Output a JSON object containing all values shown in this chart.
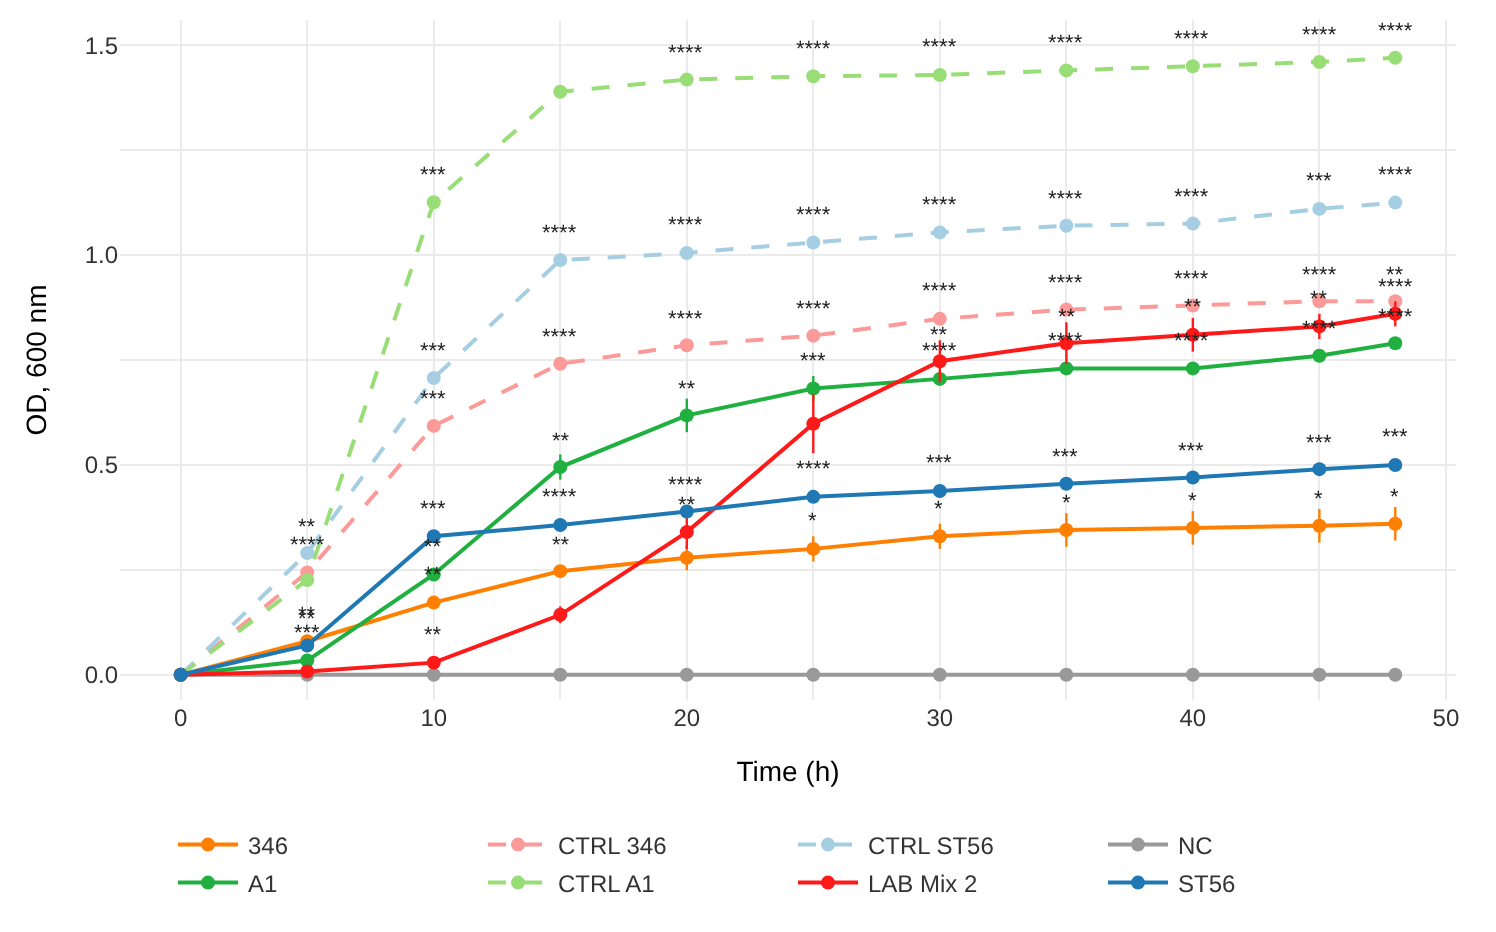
{
  "chart_data": {
    "type": "line",
    "xlabel": "Time (h)",
    "ylabel": "OD, 600 nm",
    "x": [
      0,
      5,
      10,
      15,
      20,
      25,
      30,
      35,
      40,
      45,
      48
    ],
    "xlim": [
      -2.4,
      50.4
    ],
    "xticks": [
      0,
      {
        "value": 5,
        "label": null
      },
      10,
      {
        "value": 15,
        "label": null
      },
      20,
      {
        "value": 25,
        "label": null
      },
      30,
      {
        "value": 35,
        "label": null
      },
      40,
      {
        "value": 45,
        "label": null
      },
      50
    ],
    "ylim": [
      -0.06,
      1.56
    ],
    "yticks": [
      {
        "value": 0,
        "label": "0.0"
      },
      {
        "value": 0.25,
        "label": null
      },
      {
        "value": 0.5,
        "label": "0.5"
      },
      {
        "value": 0.75,
        "label": null
      },
      {
        "value": 1,
        "label": "1.0"
      },
      {
        "value": 1.25,
        "label": null
      },
      {
        "value": 1.5,
        "label": "1.5"
      }
    ],
    "grid": true,
    "legend": "bottom",
    "marker": "circle",
    "annotations": [
      {
        "text": "**",
        "x": 5,
        "y": 0.29
      },
      {
        "text": "****",
        "x": 5,
        "y": 0.244
      },
      {
        "text": "**",
        "x": 5,
        "y": 0.08
      },
      {
        "text": "**",
        "x": 5,
        "y": 0.07
      },
      {
        "text": "***",
        "x": 5,
        "y": 0.034
      },
      {
        "text": "***",
        "x": 10,
        "y": 1.126
      },
      {
        "text": "***",
        "x": 10,
        "y": 0.707
      },
      {
        "text": "***",
        "x": 10,
        "y": 0.593
      },
      {
        "text": "***",
        "x": 10,
        "y": 0.33
      },
      {
        "text": "**",
        "x": 10,
        "y": 0.239
      },
      {
        "text": "**",
        "x": 10,
        "y": 0.172
      },
      {
        "text": "**",
        "x": 10,
        "y": 0.029
      },
      {
        "text": "****",
        "x": 15,
        "y": 0.988
      },
      {
        "text": "****",
        "x": 15,
        "y": 0.741
      },
      {
        "text": "**",
        "x": 15,
        "y": 0.495
      },
      {
        "text": "****",
        "x": 15,
        "y": 0.357
      },
      {
        "text": "**",
        "x": 15,
        "y": 0.247
      },
      {
        "text": "****",
        "x": 20,
        "y": 1.418
      },
      {
        "text": "****",
        "x": 20,
        "y": 1.005
      },
      {
        "text": "****",
        "x": 20,
        "y": 0.785
      },
      {
        "text": "**",
        "x": 20,
        "y": 0.618
      },
      {
        "text": "****",
        "x": 20,
        "y": 0.389
      },
      {
        "text": "**",
        "x": 20,
        "y": 0.34
      },
      {
        "text": "****",
        "x": 25,
        "y": 1.426
      },
      {
        "text": "****",
        "x": 25,
        "y": 1.03
      },
      {
        "text": "****",
        "x": 25,
        "y": 0.808
      },
      {
        "text": "***",
        "x": 25,
        "y": 0.682
      },
      {
        "text": "****",
        "x": 25,
        "y": 0.424
      },
      {
        "text": "*",
        "x": 25,
        "y": 0.3
      },
      {
        "text": "****",
        "x": 30,
        "y": 1.429
      },
      {
        "text": "****",
        "x": 30,
        "y": 1.054
      },
      {
        "text": "****",
        "x": 30,
        "y": 0.848
      },
      {
        "text": "**",
        "x": 30,
        "y": 0.747
      },
      {
        "text": "****",
        "x": 30,
        "y": 0.705
      },
      {
        "text": "***",
        "x": 30,
        "y": 0.438
      },
      {
        "text": "*",
        "x": 30,
        "y": 0.33
      },
      {
        "text": "****",
        "x": 35,
        "y": 1.44
      },
      {
        "text": "****",
        "x": 35,
        "y": 1.07
      },
      {
        "text": "****",
        "x": 35,
        "y": 0.87
      },
      {
        "text": "**",
        "x": 35,
        "y": 0.79
      },
      {
        "text": "****",
        "x": 35,
        "y": 0.73
      },
      {
        "text": "***",
        "x": 35,
        "y": 0.455
      },
      {
        "text": "*",
        "x": 35,
        "y": 0.345
      },
      {
        "text": "****",
        "x": 40,
        "y": 1.45
      },
      {
        "text": "****",
        "x": 40,
        "y": 1.075
      },
      {
        "text": "****",
        "x": 40,
        "y": 0.88
      },
      {
        "text": "**",
        "x": 40,
        "y": 0.81
      },
      {
        "text": "****",
        "x": 40,
        "y": 0.73
      },
      {
        "text": "***",
        "x": 40,
        "y": 0.47
      },
      {
        "text": "*",
        "x": 40,
        "y": 0.35
      },
      {
        "text": "****",
        "x": 45,
        "y": 1.46
      },
      {
        "text": "***",
        "x": 45,
        "y": 1.11
      },
      {
        "text": "****",
        "x": 45,
        "y": 0.89
      },
      {
        "text": "**",
        "x": 45,
        "y": 0.83
      },
      {
        "text": "****",
        "x": 45,
        "y": 0.76
      },
      {
        "text": "***",
        "x": 45,
        "y": 0.49
      },
      {
        "text": "*",
        "x": 45,
        "y": 0.355
      },
      {
        "text": "****",
        "x": 48,
        "y": 1.47
      },
      {
        "text": "****",
        "x": 48,
        "y": 1.125
      },
      {
        "text": "**",
        "x": 48,
        "y": 0.89
      },
      {
        "text": "****",
        "x": 48,
        "y": 0.86
      },
      {
        "text": "****",
        "x": 48,
        "y": 0.79
      },
      {
        "text": "***",
        "x": 48,
        "y": 0.5
      },
      {
        "text": "*",
        "x": 48,
        "y": 0.36
      }
    ],
    "series": [
      {
        "name": "346",
        "color": "#ff7f00",
        "line_style": "solid",
        "values": [
          0,
          0.08,
          0.172,
          0.247,
          0.279,
          0.3,
          0.33,
          0.345,
          0.35,
          0.355,
          0.36
        ],
        "errors": [
          null,
          null,
          null,
          null,
          0.03,
          0.03,
          0.03,
          0.04,
          0.04,
          0.04,
          0.04
        ]
      },
      {
        "name": "CTRL 346",
        "color": "#fb9a99",
        "line_style": "dashed",
        "values": [
          0,
          0.244,
          0.593,
          0.741,
          0.785,
          0.808,
          0.848,
          0.87,
          0.88,
          0.89,
          0.89
        ]
      },
      {
        "name": "CTRL ST56",
        "color": "#a6cee3",
        "line_style": "dashed",
        "values": [
          0,
          0.29,
          0.707,
          0.988,
          1.005,
          1.03,
          1.054,
          1.07,
          1.075,
          1.11,
          1.125
        ]
      },
      {
        "name": "NC",
        "color": "#999999",
        "line_style": "solid",
        "values": [
          0,
          0,
          0,
          0,
          0,
          0,
          0,
          0,
          0,
          0,
          0
        ]
      },
      {
        "name": "A1",
        "color": "#1fb040",
        "line_style": "solid",
        "values": [
          0,
          0.034,
          0.239,
          0.495,
          0.618,
          0.682,
          0.705,
          0.73,
          0.73,
          0.76,
          0.79
        ],
        "errors": [
          null,
          null,
          null,
          0.03,
          0.04,
          0.03,
          null,
          null,
          null,
          null,
          null
        ]
      },
      {
        "name": "CTRL A1",
        "color": "#99dd77",
        "line_style": "dashed",
        "values": [
          0,
          0.226,
          1.126,
          1.389,
          1.418,
          1.426,
          1.429,
          1.44,
          1.45,
          1.46,
          1.47
        ]
      },
      {
        "name": "LAB Mix 2",
        "color": "#ff1a1a",
        "line_style": "solid",
        "values": [
          0,
          0.008,
          0.029,
          0.143,
          0.34,
          0.598,
          0.747,
          0.79,
          0.81,
          0.83,
          0.86
        ],
        "errors": [
          null,
          null,
          null,
          0.02,
          0.04,
          0.07,
          0.05,
          0.05,
          0.04,
          0.03,
          0.03
        ]
      },
      {
        "name": "ST56",
        "color": "#1f78b4",
        "line_style": "solid",
        "values": [
          0,
          0.07,
          0.33,
          0.357,
          0.389,
          0.424,
          0.438,
          0.455,
          0.47,
          0.49,
          0.5
        ]
      }
    ]
  }
}
